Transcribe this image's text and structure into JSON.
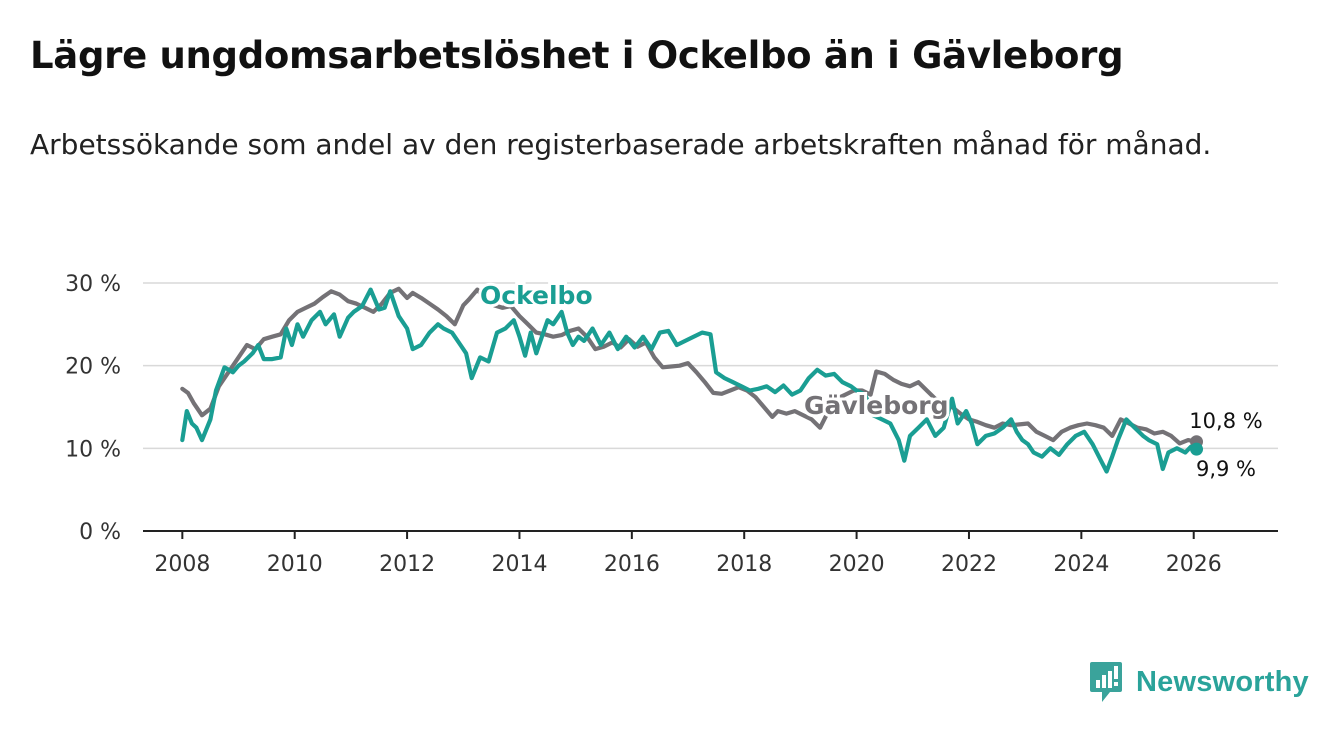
{
  "header": {
    "title": "Lägre ungdomsarbetslöshet i Ockelbo än i Gävleborg",
    "subtitle": "Arbetssökande som andel av den registerbaserade arbetskraften månad för månad."
  },
  "logo": {
    "text": "Newsworthy",
    "icon": "newsworthy-logo-icon",
    "color": "#3aa39b"
  },
  "colors": {
    "ockelbo": "#1a9e93",
    "gavleborg": "#747276",
    "grid": "#d9d9d9",
    "axis": "#222222"
  },
  "chart_data": {
    "type": "line",
    "title": "Lägre ungdomsarbetslöshet i Ockelbo än i Gävleborg",
    "xlabel": "",
    "ylabel": "",
    "xlim": [
      2007.3,
      2027.5
    ],
    "ylim": [
      0,
      30
    ],
    "y_ticks": [
      0,
      10,
      20,
      30
    ],
    "y_tick_labels": [
      "0 %",
      "10 %",
      "20 %",
      "30 %"
    ],
    "x_ticks": [
      2008,
      2010,
      2012,
      2014,
      2016,
      2018,
      2020,
      2022,
      2024,
      2026
    ],
    "x_tick_labels": [
      "2008",
      "2010",
      "2012",
      "2014",
      "2016",
      "2018",
      "2020",
      "2022",
      "2024",
      "2026"
    ],
    "grid": true,
    "series": [
      {
        "name": "Gävleborg",
        "label": "Gävleborg",
        "color": "#747276",
        "end_label": "10,8 %",
        "end_value": 10.8,
        "points": [
          [
            2008.0,
            17.2
          ],
          [
            2008.1,
            16.7
          ],
          [
            2008.2,
            15.5
          ],
          [
            2008.35,
            14.0
          ],
          [
            2008.5,
            14.8
          ],
          [
            2008.65,
            17.5
          ],
          [
            2008.8,
            19.0
          ],
          [
            2009.0,
            21.0
          ],
          [
            2009.15,
            22.5
          ],
          [
            2009.3,
            22.0
          ],
          [
            2009.45,
            23.2
          ],
          [
            2009.6,
            23.5
          ],
          [
            2009.75,
            23.8
          ],
          [
            2009.9,
            25.5
          ],
          [
            2010.05,
            26.5
          ],
          [
            2010.2,
            27.0
          ],
          [
            2010.35,
            27.5
          ],
          [
            2010.5,
            28.3
          ],
          [
            2010.65,
            29.0
          ],
          [
            2010.8,
            28.6
          ],
          [
            2010.95,
            27.8
          ],
          [
            2011.1,
            27.5
          ],
          [
            2011.25,
            27.0
          ],
          [
            2011.4,
            26.5
          ],
          [
            2011.55,
            27.5
          ],
          [
            2011.7,
            28.8
          ],
          [
            2011.85,
            29.3
          ],
          [
            2012.0,
            28.2
          ],
          [
            2012.1,
            28.8
          ],
          [
            2012.25,
            28.2
          ],
          [
            2012.4,
            27.5
          ],
          [
            2012.55,
            26.8
          ],
          [
            2012.7,
            26.0
          ],
          [
            2012.85,
            25.0
          ],
          [
            2013.0,
            27.3
          ],
          [
            2013.1,
            28.0
          ],
          [
            2013.25,
            29.2
          ],
          [
            2013.4,
            28.0
          ],
          [
            2013.55,
            27.3
          ],
          [
            2013.7,
            27.0
          ],
          [
            2013.85,
            27.2
          ],
          [
            2014.0,
            26.0
          ],
          [
            2014.15,
            25.0
          ],
          [
            2014.3,
            24.0
          ],
          [
            2014.45,
            23.8
          ],
          [
            2014.6,
            23.5
          ],
          [
            2014.75,
            23.7
          ],
          [
            2014.9,
            24.2
          ],
          [
            2015.05,
            24.5
          ],
          [
            2015.2,
            23.5
          ],
          [
            2015.35,
            22.0
          ],
          [
            2015.5,
            22.3
          ],
          [
            2015.65,
            22.8
          ],
          [
            2015.8,
            22.2
          ],
          [
            2015.95,
            23.2
          ],
          [
            2016.1,
            22.3
          ],
          [
            2016.25,
            22.8
          ],
          [
            2016.4,
            21.0
          ],
          [
            2016.55,
            19.8
          ],
          [
            2016.7,
            19.9
          ],
          [
            2016.85,
            20.0
          ],
          [
            2017.0,
            20.3
          ],
          [
            2017.15,
            19.2
          ],
          [
            2017.3,
            18.0
          ],
          [
            2017.45,
            16.7
          ],
          [
            2017.6,
            16.6
          ],
          [
            2017.75,
            17.0
          ],
          [
            2017.9,
            17.4
          ],
          [
            2018.05,
            17.0
          ],
          [
            2018.2,
            16.2
          ],
          [
            2018.35,
            15.0
          ],
          [
            2018.5,
            13.8
          ],
          [
            2018.6,
            14.5
          ],
          [
            2018.75,
            14.2
          ],
          [
            2018.9,
            14.5
          ],
          [
            2019.05,
            14.0
          ],
          [
            2019.2,
            13.5
          ],
          [
            2019.35,
            12.5
          ],
          [
            2019.5,
            14.5
          ],
          [
            2019.65,
            16.0
          ],
          [
            2019.8,
            16.5
          ],
          [
            2019.95,
            17.0
          ],
          [
            2020.1,
            17.0
          ],
          [
            2020.25,
            16.5
          ],
          [
            2020.35,
            19.3
          ],
          [
            2020.5,
            19.0
          ],
          [
            2020.65,
            18.3
          ],
          [
            2020.8,
            17.8
          ],
          [
            2020.95,
            17.5
          ],
          [
            2021.1,
            18.0
          ],
          [
            2021.25,
            17.0
          ],
          [
            2021.4,
            16.0
          ],
          [
            2021.55,
            15.5
          ],
          [
            2021.7,
            15.0
          ],
          [
            2021.85,
            14.2
          ],
          [
            2022.0,
            13.5
          ],
          [
            2022.15,
            13.2
          ],
          [
            2022.3,
            12.8
          ],
          [
            2022.45,
            12.5
          ],
          [
            2022.6,
            13.0
          ],
          [
            2022.75,
            12.8
          ],
          [
            2022.9,
            12.9
          ],
          [
            2023.05,
            13.0
          ],
          [
            2023.2,
            12.0
          ],
          [
            2023.35,
            11.5
          ],
          [
            2023.5,
            11.0
          ],
          [
            2023.65,
            12.0
          ],
          [
            2023.8,
            12.5
          ],
          [
            2023.95,
            12.8
          ],
          [
            2024.1,
            13.0
          ],
          [
            2024.25,
            12.8
          ],
          [
            2024.4,
            12.5
          ],
          [
            2024.55,
            11.5
          ],
          [
            2024.7,
            13.5
          ],
          [
            2024.85,
            13.0
          ],
          [
            2025.0,
            12.5
          ],
          [
            2025.15,
            12.3
          ],
          [
            2025.3,
            11.8
          ],
          [
            2025.45,
            12.0
          ],
          [
            2025.6,
            11.5
          ],
          [
            2025.75,
            10.6
          ],
          [
            2025.9,
            11.0
          ],
          [
            2026.05,
            10.8
          ]
        ]
      },
      {
        "name": "Ockelbo",
        "label": "Ockelbo",
        "color": "#1a9e93",
        "end_label": "9,9 %",
        "end_value": 9.9,
        "points": [
          [
            2008.0,
            11.0
          ],
          [
            2008.08,
            14.5
          ],
          [
            2008.17,
            13.0
          ],
          [
            2008.25,
            12.5
          ],
          [
            2008.35,
            11.0
          ],
          [
            2008.5,
            13.5
          ],
          [
            2008.6,
            17.0
          ],
          [
            2008.75,
            19.8
          ],
          [
            2008.9,
            19.2
          ],
          [
            2009.0,
            20.0
          ],
          [
            2009.1,
            20.5
          ],
          [
            2009.25,
            21.5
          ],
          [
            2009.35,
            22.5
          ],
          [
            2009.45,
            20.8
          ],
          [
            2009.6,
            20.8
          ],
          [
            2009.75,
            21.0
          ],
          [
            2009.85,
            24.5
          ],
          [
            2009.95,
            22.5
          ],
          [
            2010.05,
            25.0
          ],
          [
            2010.15,
            23.5
          ],
          [
            2010.3,
            25.5
          ],
          [
            2010.45,
            26.5
          ],
          [
            2010.55,
            25.0
          ],
          [
            2010.7,
            26.2
          ],
          [
            2010.8,
            23.5
          ],
          [
            2010.95,
            25.8
          ],
          [
            2011.05,
            26.5
          ],
          [
            2011.2,
            27.2
          ],
          [
            2011.35,
            29.2
          ],
          [
            2011.5,
            26.8
          ],
          [
            2011.6,
            27.0
          ],
          [
            2011.7,
            29.0
          ],
          [
            2011.85,
            26.0
          ],
          [
            2012.0,
            24.5
          ],
          [
            2012.1,
            22.0
          ],
          [
            2012.25,
            22.5
          ],
          [
            2012.4,
            24.0
          ],
          [
            2012.55,
            25.0
          ],
          [
            2012.65,
            24.5
          ],
          [
            2012.8,
            24.0
          ],
          [
            2012.95,
            22.5
          ],
          [
            2013.05,
            21.5
          ],
          [
            2013.15,
            18.5
          ],
          [
            2013.3,
            21.0
          ],
          [
            2013.45,
            20.5
          ],
          [
            2013.6,
            24.0
          ],
          [
            2013.75,
            24.5
          ],
          [
            2013.9,
            25.5
          ],
          [
            2014.0,
            23.5
          ],
          [
            2014.1,
            21.2
          ],
          [
            2014.2,
            24.0
          ],
          [
            2014.3,
            21.5
          ],
          [
            2014.4,
            23.5
          ],
          [
            2014.5,
            25.5
          ],
          [
            2014.6,
            25.0
          ],
          [
            2014.75,
            26.5
          ],
          [
            2014.85,
            24.0
          ],
          [
            2014.95,
            22.5
          ],
          [
            2015.05,
            23.5
          ],
          [
            2015.15,
            23.0
          ],
          [
            2015.3,
            24.5
          ],
          [
            2015.45,
            22.5
          ],
          [
            2015.6,
            24.0
          ],
          [
            2015.75,
            22.0
          ],
          [
            2015.9,
            23.5
          ],
          [
            2016.05,
            22.2
          ],
          [
            2016.2,
            23.5
          ],
          [
            2016.35,
            22.0
          ],
          [
            2016.5,
            24.0
          ],
          [
            2016.65,
            24.2
          ],
          [
            2016.8,
            22.5
          ],
          [
            2016.95,
            23.0
          ],
          [
            2017.1,
            23.5
          ],
          [
            2017.25,
            24.0
          ],
          [
            2017.4,
            23.8
          ],
          [
            2017.5,
            19.2
          ],
          [
            2017.65,
            18.5
          ],
          [
            2017.8,
            18.0
          ],
          [
            2017.95,
            17.5
          ],
          [
            2018.1,
            17.0
          ],
          [
            2018.25,
            17.2
          ],
          [
            2018.4,
            17.5
          ],
          [
            2018.55,
            16.8
          ],
          [
            2018.7,
            17.6
          ],
          [
            2018.85,
            16.5
          ],
          [
            2019.0,
            17.0
          ],
          [
            2019.15,
            18.5
          ],
          [
            2019.3,
            19.5
          ],
          [
            2019.45,
            18.8
          ],
          [
            2019.6,
            19.0
          ],
          [
            2019.75,
            18.0
          ],
          [
            2019.9,
            17.5
          ],
          [
            2020.0,
            17.0
          ],
          [
            2020.15,
            16.5
          ],
          [
            2020.3,
            14.0
          ],
          [
            2020.45,
            13.5
          ],
          [
            2020.6,
            13.0
          ],
          [
            2020.75,
            11.0
          ],
          [
            2020.85,
            8.5
          ],
          [
            2020.95,
            11.5
          ],
          [
            2021.1,
            12.5
          ],
          [
            2021.25,
            13.5
          ],
          [
            2021.4,
            11.5
          ],
          [
            2021.55,
            12.5
          ],
          [
            2021.7,
            16.0
          ],
          [
            2021.8,
            13.0
          ],
          [
            2021.95,
            14.5
          ],
          [
            2022.05,
            13.0
          ],
          [
            2022.15,
            10.5
          ],
          [
            2022.3,
            11.5
          ],
          [
            2022.45,
            11.8
          ],
          [
            2022.6,
            12.5
          ],
          [
            2022.75,
            13.5
          ],
          [
            2022.85,
            12.0
          ],
          [
            2022.95,
            11.0
          ],
          [
            2023.05,
            10.5
          ],
          [
            2023.15,
            9.5
          ],
          [
            2023.3,
            9.0
          ],
          [
            2023.45,
            10.0
          ],
          [
            2023.6,
            9.2
          ],
          [
            2023.75,
            10.5
          ],
          [
            2023.9,
            11.5
          ],
          [
            2024.05,
            12.0
          ],
          [
            2024.2,
            10.5
          ],
          [
            2024.35,
            8.5
          ],
          [
            2024.45,
            7.2
          ],
          [
            2024.55,
            9.0
          ],
          [
            2024.65,
            11.0
          ],
          [
            2024.8,
            13.5
          ],
          [
            2024.95,
            12.5
          ],
          [
            2025.1,
            11.5
          ],
          [
            2025.2,
            11.0
          ],
          [
            2025.35,
            10.5
          ],
          [
            2025.45,
            7.5
          ],
          [
            2025.55,
            9.5
          ],
          [
            2025.7,
            10.0
          ],
          [
            2025.85,
            9.5
          ],
          [
            2025.95,
            10.2
          ],
          [
            2026.05,
            9.9
          ]
        ]
      }
    ],
    "annotations": [
      {
        "text": "Ockelbo",
        "series": "Ockelbo",
        "x": 2013.0,
        "y": 28.5
      },
      {
        "text": "Gävleborg",
        "series": "Gävleborg",
        "x": 2018.4,
        "y": 14.8
      }
    ]
  }
}
